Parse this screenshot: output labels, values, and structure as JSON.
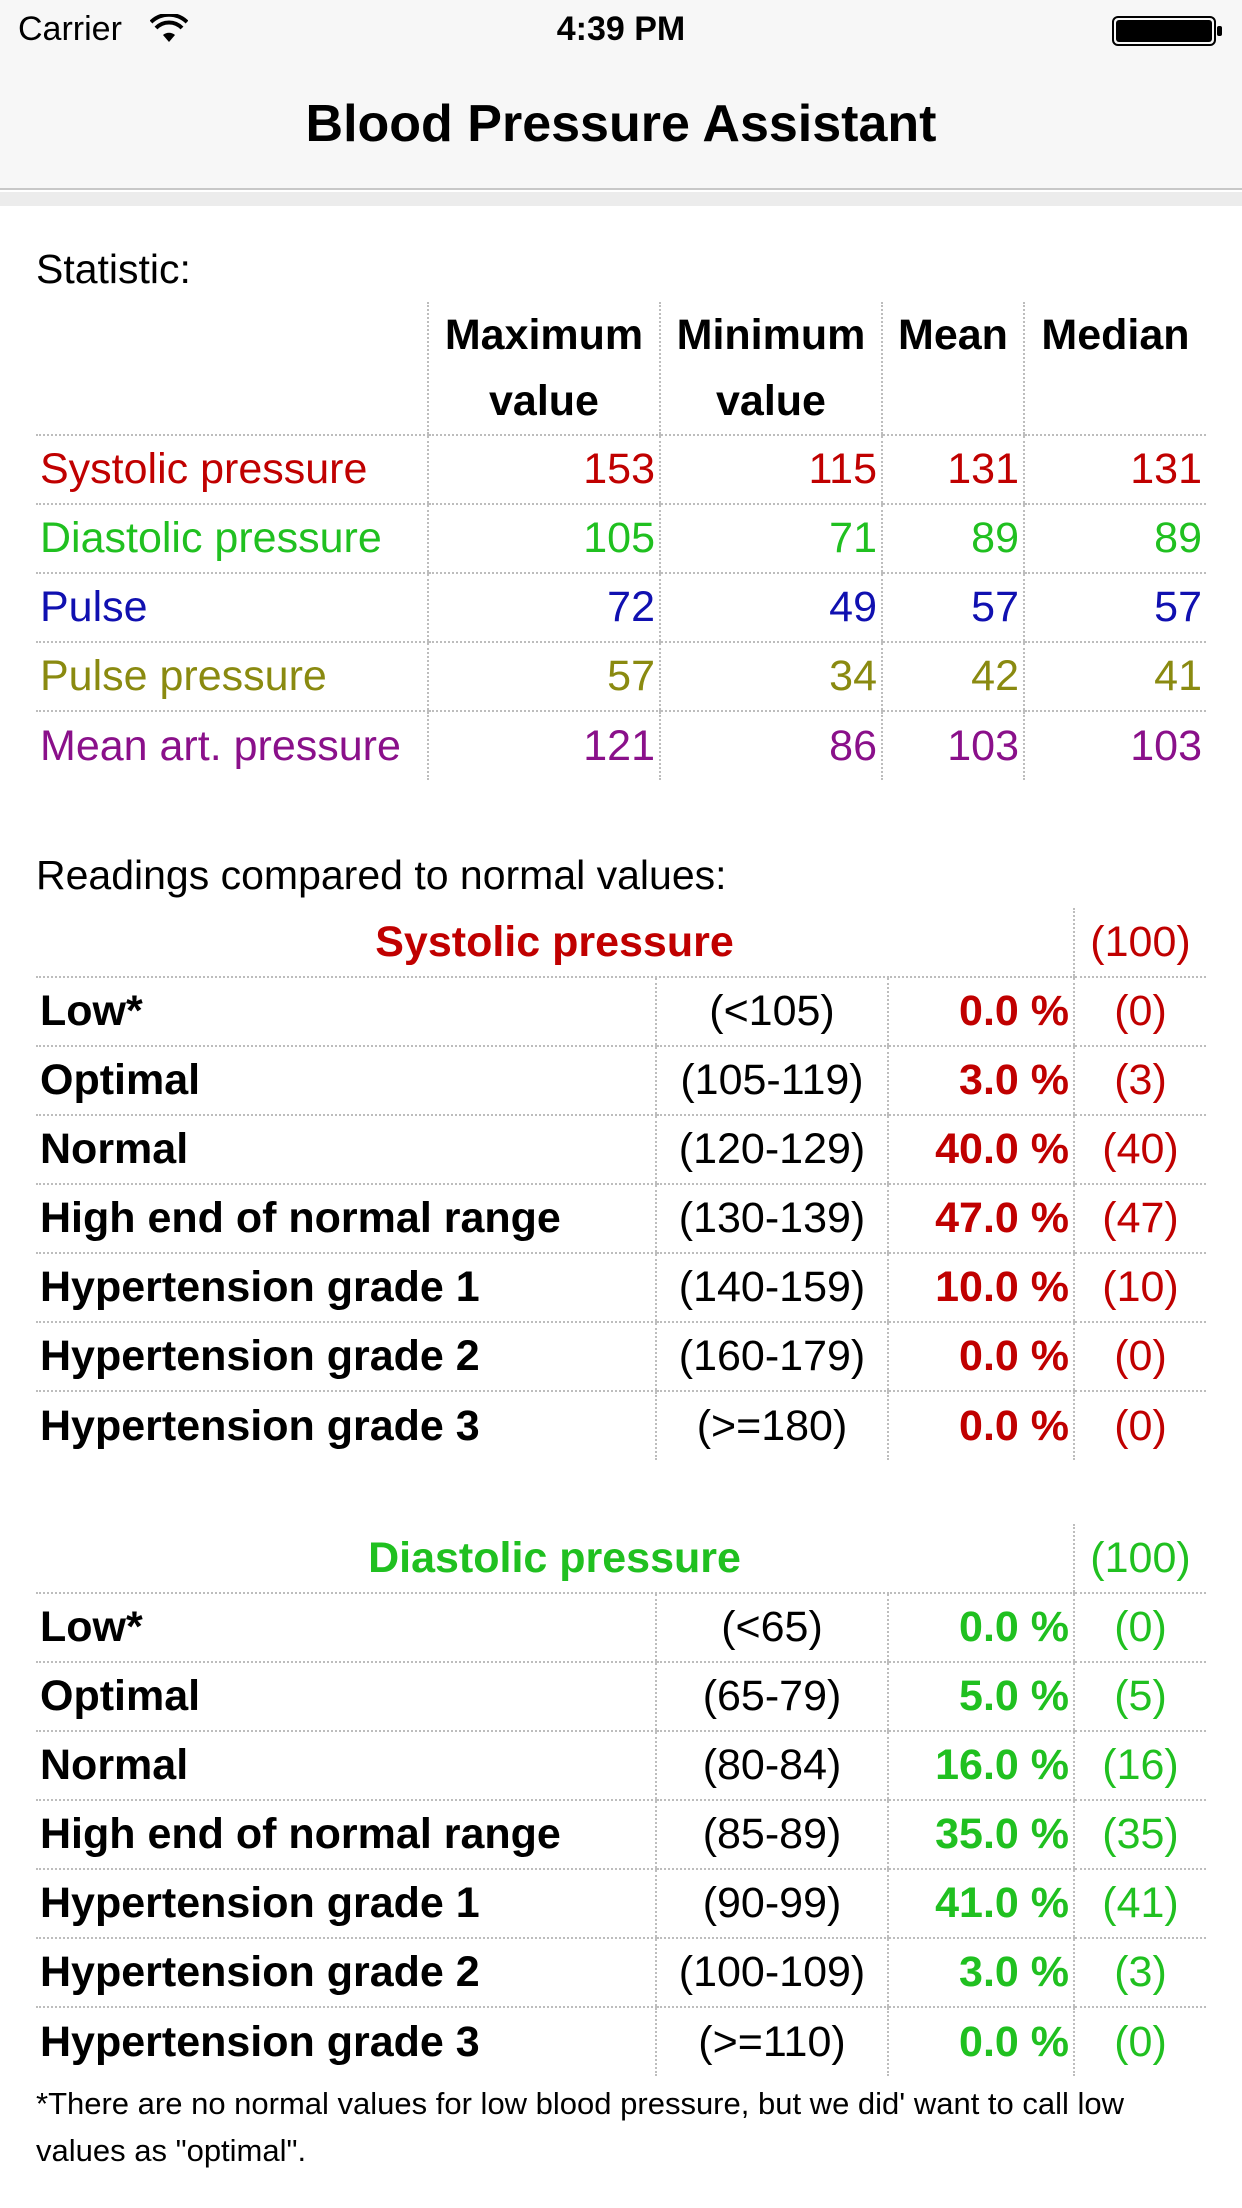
{
  "status_bar": {
    "carrier": "Carrier",
    "time": "4:39 PM",
    "wifi_icon": "wifi-icon",
    "battery_icon": "battery-icon"
  },
  "nav": {
    "title": "Blood Pressure Assistant"
  },
  "colors": {
    "systolic": "#c00000",
    "diastolic": "#20c020",
    "pulse": "#1010b0",
    "pulse_pressure": "#8a8a10",
    "mean_art": "#8a108a"
  },
  "statistic": {
    "label": "Statistic:",
    "headers": {
      "max_line1": "Maximum",
      "max_line2": "value",
      "min_line1": "Minimum",
      "min_line2": "value",
      "mean": "Mean",
      "median": "Median"
    },
    "rows": [
      {
        "name": "Systolic pressure",
        "max": "153",
        "min": "115",
        "mean": "131",
        "median": "131"
      },
      {
        "name": "Diastolic pressure",
        "max": "105",
        "min": "71",
        "mean": "89",
        "median": "89"
      },
      {
        "name": "Pulse",
        "max": "72",
        "min": "49",
        "mean": "57",
        "median": "57"
      },
      {
        "name": "Pulse pressure",
        "max": "57",
        "min": "34",
        "mean": "42",
        "median": "41"
      },
      {
        "name": "Mean art. pressure",
        "max": "121",
        "min": "86",
        "mean": "103",
        "median": "103"
      }
    ]
  },
  "comparison": {
    "label": "Readings compared to normal values:",
    "systolic": {
      "title": "Systolic pressure",
      "total": "(100)",
      "rows": [
        {
          "label": "Low*",
          "range": "(<105)",
          "percent": "0.0 %",
          "count": "(0)"
        },
        {
          "label": "Optimal",
          "range": "(105-119)",
          "percent": "3.0 %",
          "count": "(3)"
        },
        {
          "label": "Normal",
          "range": "(120-129)",
          "percent": "40.0 %",
          "count": "(40)"
        },
        {
          "label": "High end of normal range",
          "range": "(130-139)",
          "percent": "47.0 %",
          "count": "(47)"
        },
        {
          "label": "Hypertension grade 1",
          "range": "(140-159)",
          "percent": "10.0 %",
          "count": "(10)"
        },
        {
          "label": "Hypertension grade 2",
          "range": "(160-179)",
          "percent": "0.0 %",
          "count": "(0)"
        },
        {
          "label": "Hypertension grade 3",
          "range": "(>=180)",
          "percent": "0.0 %",
          "count": "(0)"
        }
      ]
    },
    "diastolic": {
      "title": "Diastolic pressure",
      "total": "(100)",
      "rows": [
        {
          "label": "Low*",
          "range": "(<65)",
          "percent": "0.0 %",
          "count": "(0)"
        },
        {
          "label": "Optimal",
          "range": "(65-79)",
          "percent": "5.0 %",
          "count": "(5)"
        },
        {
          "label": "Normal",
          "range": "(80-84)",
          "percent": "16.0 %",
          "count": "(16)"
        },
        {
          "label": "High end of normal range",
          "range": "(85-89)",
          "percent": "35.0 %",
          "count": "(35)"
        },
        {
          "label": "Hypertension grade 1",
          "range": "(90-99)",
          "percent": "41.0 %",
          "count": "(41)"
        },
        {
          "label": "Hypertension grade 2",
          "range": "(100-109)",
          "percent": "3.0 %",
          "count": "(3)"
        },
        {
          "label": "Hypertension grade 3",
          "range": "(>=110)",
          "percent": "0.0 %",
          "count": "(0)"
        }
      ]
    }
  },
  "footnote": "*There are no normal values for low blood pressure, but we did' want to call low values as \"optimal\"."
}
